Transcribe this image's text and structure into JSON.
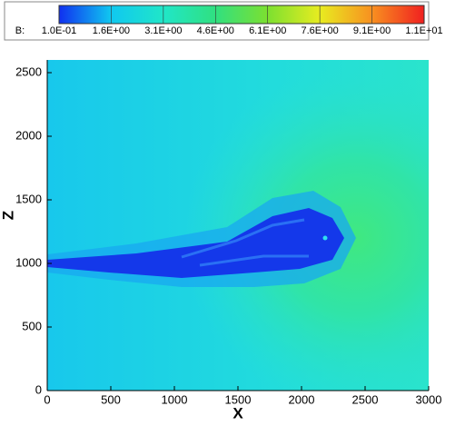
{
  "chart_data": {
    "type": "contour",
    "xlabel": "X",
    "ylabel": "Z",
    "xlim": [
      0,
      3000
    ],
    "xticks": [
      0,
      500,
      1000,
      1500,
      2000,
      2500,
      3000
    ],
    "ylim": [
      0,
      2600
    ],
    "yticks": [
      0,
      500,
      1000,
      1500,
      2000,
      2500
    ],
    "colorbar": {
      "label": "B:",
      "lim": [
        0.1,
        10.6
      ],
      "colors": [
        "#1030f0",
        "#10c8f0",
        "#20e6c8",
        "#30e080",
        "#7ce030",
        "#e8ec20",
        "#f89020",
        "#f02020"
      ],
      "ticks": [
        {
          "value": 0.1,
          "label": "1.0E-01"
        },
        {
          "value": 1.6,
          "label": "1.6E+00"
        },
        {
          "value": 3.1,
          "label": "3.1E+00"
        },
        {
          "value": 4.6,
          "label": "4.6E+00"
        },
        {
          "value": 6.1,
          "label": "6.1E+00"
        },
        {
          "value": 7.6,
          "label": "7.6E+00"
        },
        {
          "value": 9.1,
          "label": "9.1E+00"
        },
        {
          "value": 10.6,
          "label": "1.1E+01"
        }
      ]
    }
  }
}
